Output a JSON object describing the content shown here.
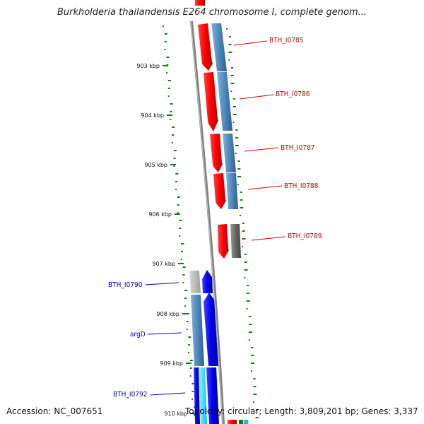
{
  "title": "Burkholderia thailandensis E264 chromosome I, complete genom...",
  "footer": {
    "accession": "Accession: NC_007651",
    "topology": "Topology: circular; Length: 3,809,201 bp; Genes: 3,337"
  },
  "ticks": [
    "903 kbp",
    "904 kbp",
    "905 kbp",
    "906 kbp",
    "907 kbp",
    "908 kbp",
    "909 kbp",
    "910 kbp"
  ],
  "forward_genes": [
    "BTH_I0785",
    "BTH_I0786",
    "BTH_I0787",
    "BTH_I0788",
    "BTH_I0789"
  ],
  "reverse_genes": [
    "BTH_I0790",
    "argD",
    "BTH_I0792"
  ],
  "colors": {
    "forward_gene": "#ff0000",
    "forward_cds": "#4f88bb",
    "reverse_gene": "#0000ee",
    "backbone": "#808080",
    "gc_dots": "#1a7a1a",
    "forward_label": "#cc0000",
    "reverse_label": "#0000aa"
  }
}
